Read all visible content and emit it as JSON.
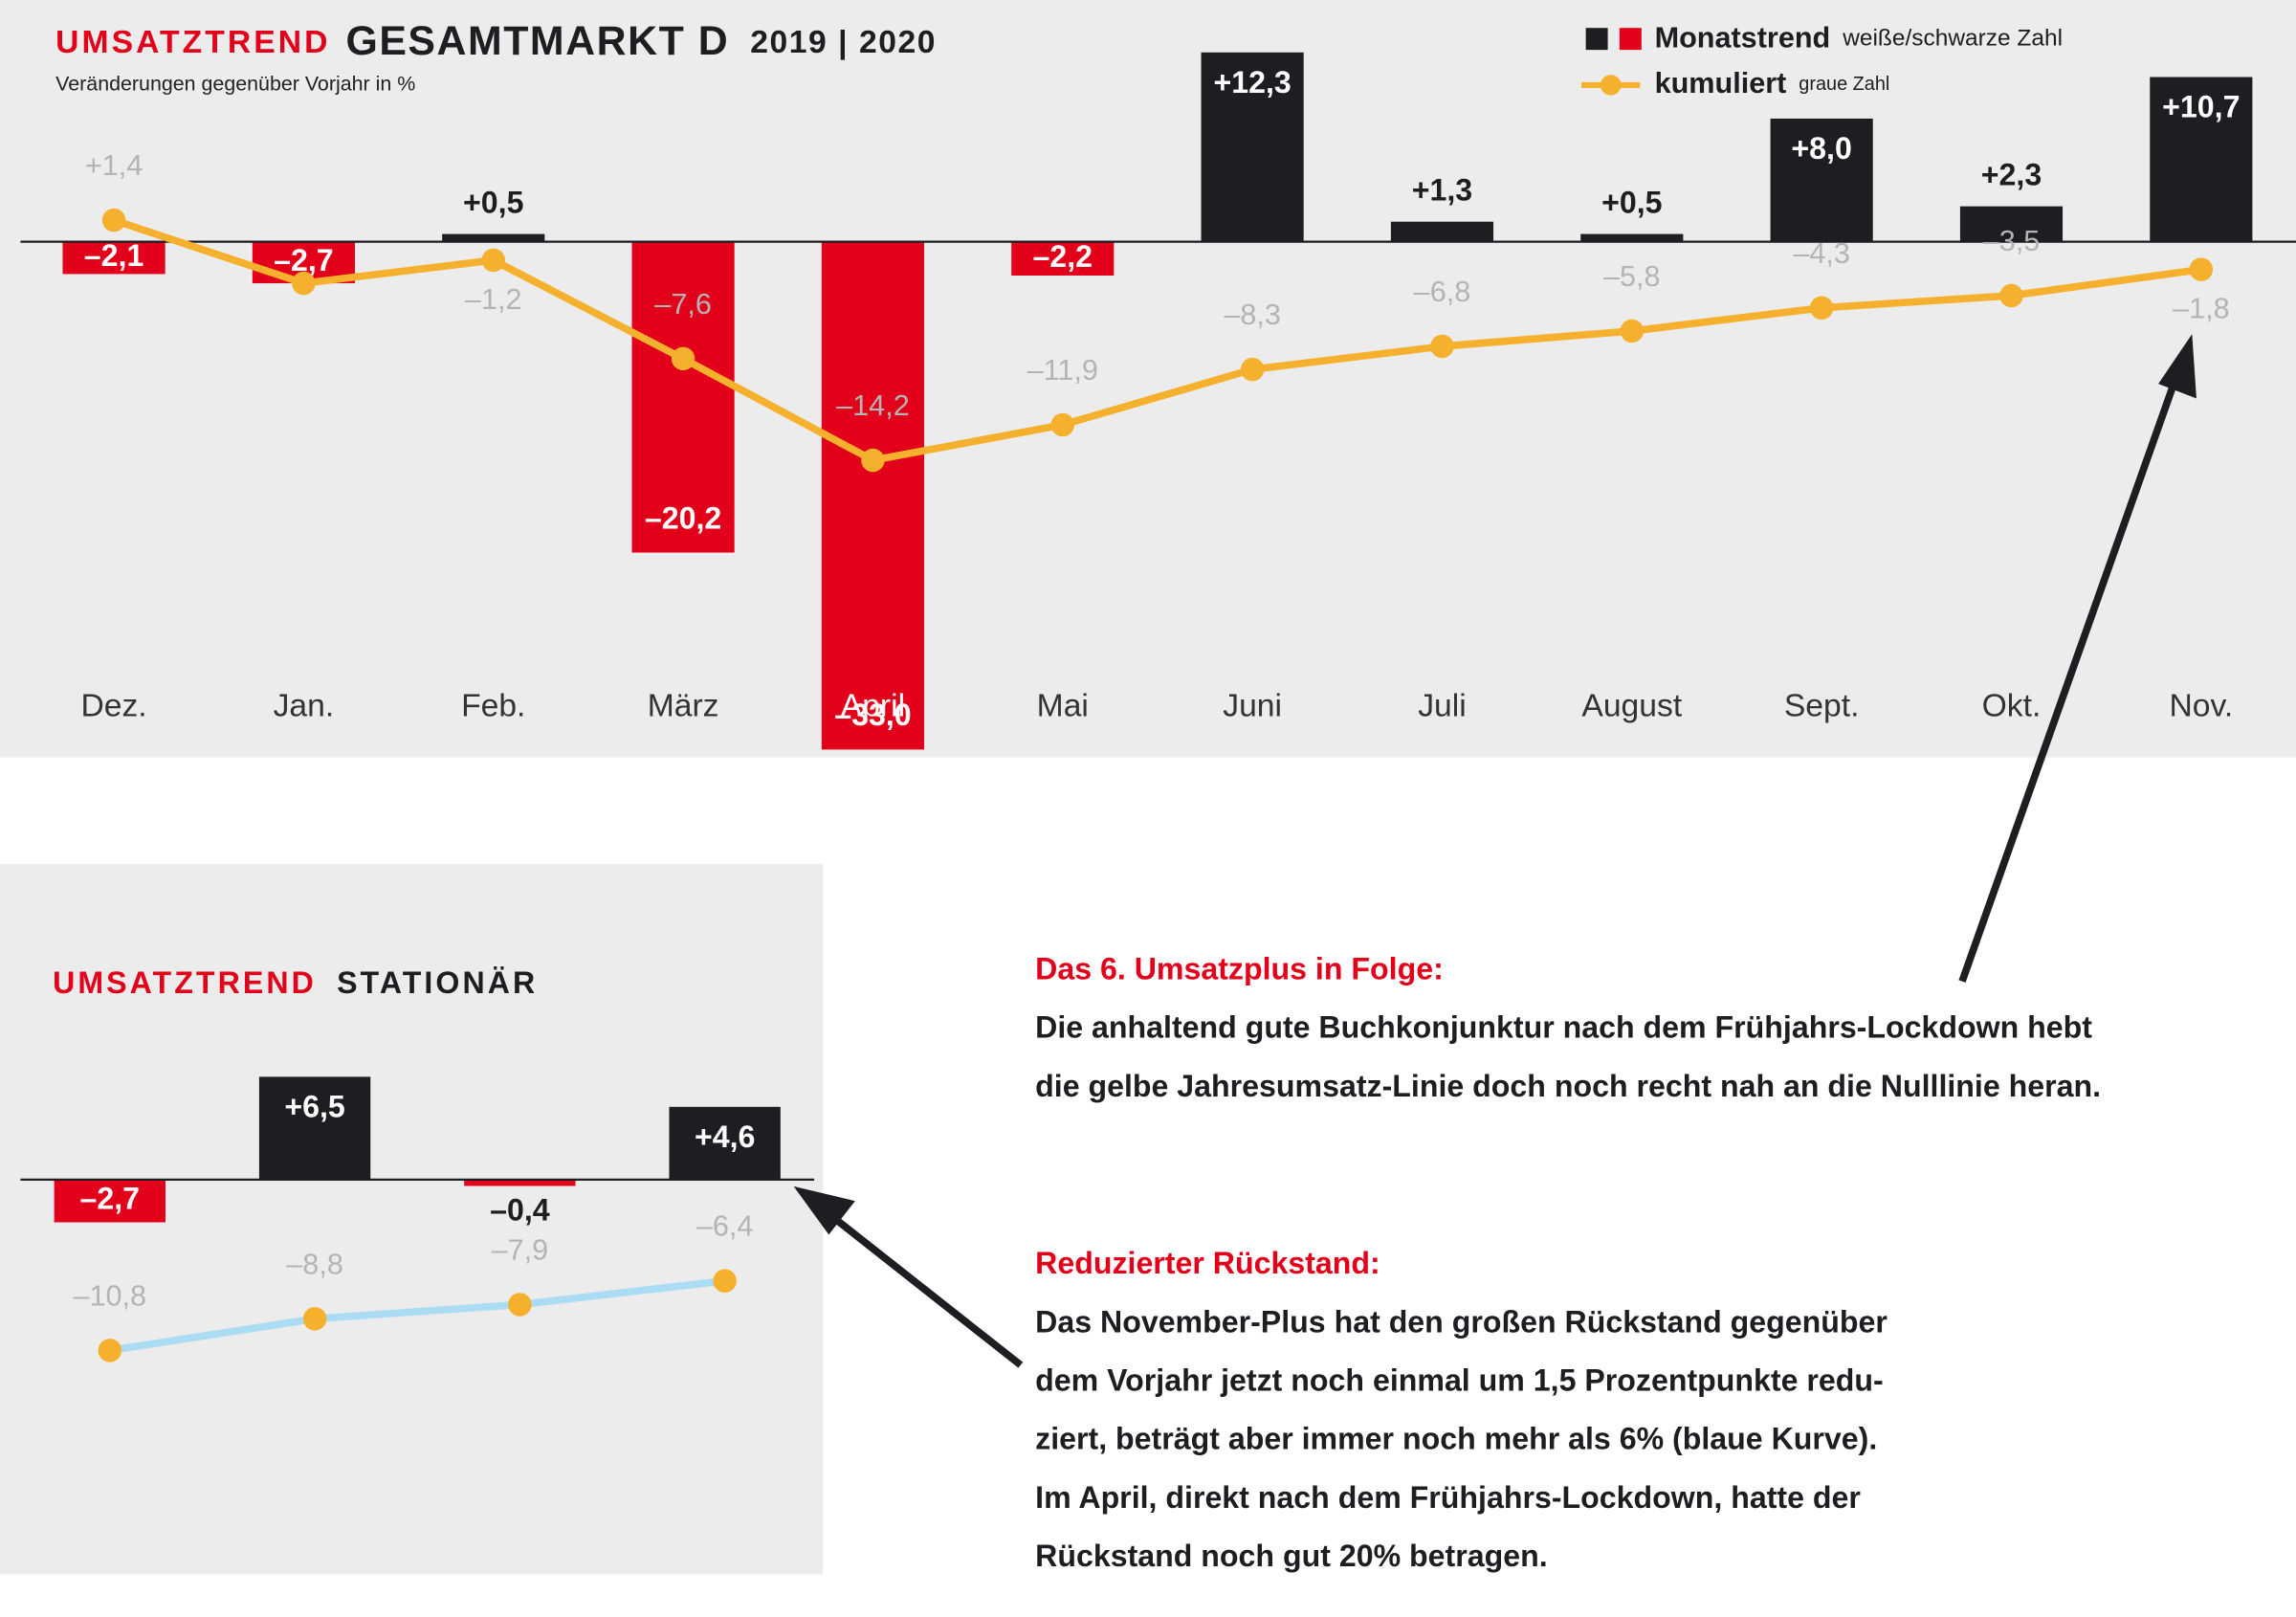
{
  "chart_data": [
    {
      "type": "bar",
      "title": [
        "UMSATZTREND",
        "GESAMTMARKT D",
        "2019 | 2020"
      ],
      "subtitle": "Veränderungen gegenüber Vorjahr in %",
      "categories": [
        "Dez.",
        "Jan.",
        "Feb.",
        "März",
        "April",
        "Mai",
        "Juni",
        "Juli",
        "August",
        "Sept.",
        "Okt.",
        "Nov."
      ],
      "ylim": [
        -33.5,
        15.7
      ],
      "series": [
        {
          "name": "Monatstrend",
          "note": "weiße/schwarze Zahl",
          "type": "bar",
          "colors": {
            "positive": "#1d1d22",
            "negative": "#e2001a"
          },
          "values": [
            -2.1,
            -2.7,
            0.5,
            -20.2,
            -33.0,
            -2.2,
            12.3,
            1.3,
            0.5,
            8.0,
            2.3,
            10.7
          ],
          "value_labels": [
            "–2,1",
            "–2,7",
            "+0,5",
            "–20,2",
            "–33,0",
            "–2,2",
            "+12,3",
            "+1,3",
            "+0,5",
            "+8,0",
            "+2,3",
            "+10,7"
          ]
        },
        {
          "name": "kumuliert",
          "note": "graue Zahl",
          "type": "line",
          "color": "#f5b02e",
          "marker_color": "#f5b02e",
          "label_color": "#b4b4b4",
          "values": [
            1.4,
            -2.7,
            -1.2,
            -7.6,
            -14.2,
            -11.9,
            -8.3,
            -6.8,
            -5.8,
            -4.3,
            -3.5,
            -1.8
          ],
          "value_labels": [
            "+1,4",
            null,
            "–1,2",
            "–7,6",
            "–14,2",
            "–11,9",
            "–8,3",
            "–6,8",
            "–5,8",
            "–4,3",
            "–3,5",
            "–1,8"
          ]
        }
      ]
    },
    {
      "type": "bar",
      "title": [
        "UMSATZTREND",
        "STATIONÄR"
      ],
      "categories": [
        null,
        null,
        null,
        null
      ],
      "ylim": [
        -12,
        8
      ],
      "series": [
        {
          "type": "bar",
          "colors": {
            "positive": "#1d1d22",
            "negative": "#e2001a"
          },
          "values": [
            -2.7,
            6.5,
            -0.4,
            4.6
          ],
          "value_labels": [
            "–2,7",
            "+6,5",
            "–0,4",
            "+4,6"
          ]
        },
        {
          "type": "line",
          "color": "#aadcf4",
          "marker_color": "#f5b02e",
          "label_color": "#b4b4b4",
          "values": [
            -10.8,
            -8.8,
            -7.9,
            -6.4
          ],
          "value_labels": [
            "–10,8",
            "–8,8",
            "–7,9",
            "–6,4"
          ]
        }
      ]
    }
  ],
  "annotations": [
    {
      "heading": "Das 6. Umsatzplus in Folge:",
      "lines": [
        "Die anhaltend gute Buchkonjunktur nach dem Frühjahrs-Lockdown hebt",
        "die gelbe Jahresumsatz-Linie doch noch recht nah an die Nulllinie heran."
      ]
    },
    {
      "heading": "Reduzierter Rückstand:",
      "lines": [
        "Das November-Plus hat den großen Rückstand gegenüber",
        "dem Vorjahr jetzt noch einmal um 1,5 Prozentpunkte redu-",
        "ziert, beträgt aber immer noch mehr als 6% (blaue Kurve).",
        "Im April, direkt nach dem Frühjahrs-Lockdown, hatte der",
        "Rückstand noch gut 20% betragen."
      ]
    }
  ]
}
